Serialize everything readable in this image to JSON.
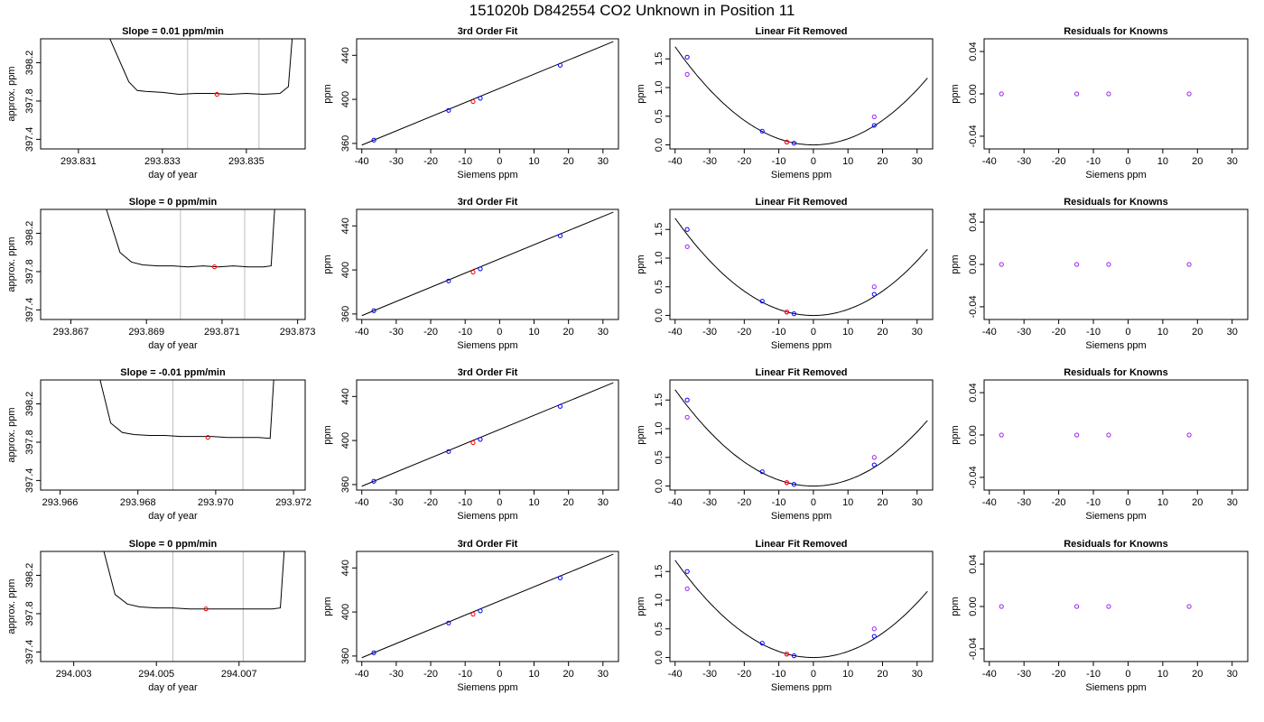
{
  "title": "151020b     D842554   CO2 Unknown in Position  11",
  "colors": {
    "line": "#000000",
    "known": "#0000ff",
    "unknown": "#ff0000",
    "residual": "#a020f0",
    "marker_line": "#bebebe"
  },
  "chart_data": [
    {
      "type": "line",
      "title": "Slope =  0.01  ppm/min",
      "xlabel": "day of year",
      "ylabel": "approx. ppm",
      "xlim": [
        293.8301,
        293.8364
      ],
      "ylim": [
        397.3,
        398.45
      ],
      "xticks": [
        293.831,
        293.833,
        293.835
      ],
      "xtick_labels": [
        "293.831",
        "293.833",
        "293.835"
      ],
      "yticks": [
        397.4,
        397.8,
        398.2
      ],
      "ytick_labels": [
        "397.4",
        "397.8",
        "398.2"
      ],
      "vlines": [
        293.8336,
        293.8353
      ],
      "series": [
        {
          "x": [
            293.8317,
            293.8322,
            293.8324,
            293.8326,
            293.833,
            293.8334,
            293.8338,
            293.8342,
            293.8346,
            293.835,
            293.8354,
            293.8358,
            293.836,
            293.8361
          ],
          "y": [
            398.5,
            398.0,
            397.91,
            397.9,
            397.89,
            397.87,
            397.88,
            397.88,
            397.87,
            397.88,
            397.87,
            397.88,
            397.95,
            398.5
          ]
        }
      ],
      "point": {
        "x": 293.8343,
        "y": 397.87
      }
    },
    {
      "type": "scatter",
      "title": "3rd Order Fit",
      "xlabel": "Siemens ppm",
      "ylabel": "ppm",
      "xlim": [
        -41.5,
        34.5
      ],
      "ylim": [
        355,
        455
      ],
      "xticks": [
        -40,
        -30,
        -20,
        -10,
        0,
        10,
        20,
        30
      ],
      "xtick_labels": [
        "-40",
        "-30",
        "-20",
        "-10",
        "0",
        "10",
        "20",
        "30"
      ],
      "yticks": [
        360,
        400,
        440
      ],
      "ytick_labels": [
        "360",
        "400",
        "440"
      ],
      "fit_line": {
        "x": [
          -40,
          33
        ],
        "y": [
          358.5,
          452.5
        ]
      },
      "knowns": {
        "x": [
          -36.5,
          -14.8,
          -5.6,
          17.6
        ],
        "y": [
          363,
          390,
          401,
          431
        ]
      },
      "unknown": {
        "x": [
          -7.7
        ],
        "y": [
          398
        ]
      }
    },
    {
      "type": "scatter",
      "title": "Linear Fit Removed",
      "xlabel": "Siemens ppm",
      "ylabel": "ppm",
      "xlim": [
        -41.5,
        34.5
      ],
      "ylim": [
        -0.07,
        1.85
      ],
      "xticks": [
        -40,
        -30,
        -20,
        -10,
        0,
        10,
        20,
        30
      ],
      "xtick_labels": [
        "-40",
        "-30",
        "-20",
        "-10",
        "0",
        "10",
        "20",
        "30"
      ],
      "yticks": [
        0.0,
        0.5,
        1.0,
        1.5
      ],
      "ytick_labels": [
        "0.0",
        "0.5",
        "1.0",
        "1.5"
      ],
      "curve_coef": 0.00107,
      "knowns": {
        "x": [
          -36.5,
          -14.8,
          -5.6,
          17.6
        ],
        "y": [
          1.53,
          0.24,
          0.03,
          0.34
        ]
      },
      "unknown": {
        "x": [
          -7.7
        ],
        "y": [
          0.05
        ]
      },
      "residual_points": {
        "x": [
          -36.5,
          17.6,
          -7.7
        ],
        "y": [
          1.23,
          0.49,
          0.05
        ]
      }
    },
    {
      "type": "scatter",
      "title": "Residuals for Knowns",
      "xlabel": "Siemens ppm",
      "ylabel": "ppm",
      "xlim": [
        -41.5,
        34.5
      ],
      "ylim": [
        -0.052,
        0.052
      ],
      "xticks": [
        -40,
        -30,
        -20,
        -10,
        0,
        10,
        20,
        30
      ],
      "xtick_labels": [
        "-40",
        "-30",
        "-20",
        "-10",
        "0",
        "10",
        "20",
        "30"
      ],
      "yticks": [
        -0.04,
        0.0,
        0.04
      ],
      "ytick_labels": [
        "-0.04",
        "0.00",
        "0.04"
      ],
      "residuals": {
        "x": [
          -36.5,
          -14.8,
          -5.6,
          17.6
        ],
        "y": [
          0,
          0,
          0,
          0
        ]
      }
    },
    {
      "type": "line",
      "title": "Slope =  0  ppm/min",
      "xlabel": "day of year",
      "ylabel": "approx. ppm",
      "xlim": [
        293.8662,
        293.8732
      ],
      "ylim": [
        397.3,
        398.45
      ],
      "xticks": [
        293.867,
        293.869,
        293.871,
        293.873
      ],
      "xtick_labels": [
        "293.867",
        "293.869",
        "293.871",
        "293.873"
      ],
      "yticks": [
        397.4,
        397.8,
        398.2
      ],
      "ytick_labels": [
        "397.4",
        "397.8",
        "398.2"
      ],
      "vlines": [
        293.8699,
        293.8716
      ],
      "series": [
        {
          "x": [
            293.8679,
            293.8683,
            293.8686,
            293.8689,
            293.8693,
            293.8697,
            293.8701,
            293.8705,
            293.8709,
            293.8713,
            293.8717,
            293.8721,
            293.8723,
            293.8724
          ],
          "y": [
            398.5,
            398.0,
            397.9,
            397.87,
            397.86,
            397.86,
            397.85,
            397.86,
            397.85,
            397.86,
            397.85,
            397.85,
            397.86,
            398.5
          ]
        }
      ],
      "point": {
        "x": 293.8708,
        "y": 397.85
      }
    },
    {
      "type": "scatter",
      "title": "3rd Order Fit",
      "xlabel": "Siemens ppm",
      "ylabel": "ppm",
      "xlim": [
        -41.5,
        34.5
      ],
      "ylim": [
        355,
        455
      ],
      "xticks": [
        -40,
        -30,
        -20,
        -10,
        0,
        10,
        20,
        30
      ],
      "xtick_labels": [
        "-40",
        "-30",
        "-20",
        "-10",
        "0",
        "10",
        "20",
        "30"
      ],
      "yticks": [
        360,
        400,
        440
      ],
      "ytick_labels": [
        "360",
        "400",
        "440"
      ],
      "fit_line": {
        "x": [
          -40,
          33
        ],
        "y": [
          358.5,
          452.5
        ]
      },
      "knowns": {
        "x": [
          -36.5,
          -14.8,
          -5.6,
          17.6
        ],
        "y": [
          363,
          390,
          401,
          431
        ]
      },
      "unknown": {
        "x": [
          -7.7
        ],
        "y": [
          398
        ]
      }
    },
    {
      "type": "scatter",
      "title": "Linear Fit Removed",
      "xlabel": "Siemens ppm",
      "ylabel": "ppm",
      "xlim": [
        -41.5,
        34.5
      ],
      "ylim": [
        -0.07,
        1.85
      ],
      "xticks": [
        -40,
        -30,
        -20,
        -10,
        0,
        10,
        20,
        30
      ],
      "xtick_labels": [
        "-40",
        "-30",
        "-20",
        "-10",
        "0",
        "10",
        "20",
        "30"
      ],
      "yticks": [
        0.0,
        0.5,
        1.0,
        1.5
      ],
      "ytick_labels": [
        "0.0",
        "0.5",
        "1.0",
        "1.5"
      ],
      "curve_coef": 0.00106,
      "knowns": {
        "x": [
          -36.5,
          -14.8,
          -5.6,
          17.6
        ],
        "y": [
          1.5,
          0.25,
          0.03,
          0.37
        ]
      },
      "unknown": {
        "x": [
          -7.7
        ],
        "y": [
          0.06
        ]
      },
      "residual_points": {
        "x": [
          -36.5,
          17.6,
          -7.7
        ],
        "y": [
          1.2,
          0.5,
          0.06
        ]
      }
    },
    {
      "type": "scatter",
      "title": "Residuals for Knowns",
      "xlabel": "Siemens ppm",
      "ylabel": "ppm",
      "xlim": [
        -41.5,
        34.5
      ],
      "ylim": [
        -0.052,
        0.052
      ],
      "xticks": [
        -40,
        -30,
        -20,
        -10,
        0,
        10,
        20,
        30
      ],
      "xtick_labels": [
        "-40",
        "-30",
        "-20",
        "-10",
        "0",
        "10",
        "20",
        "30"
      ],
      "yticks": [
        -0.04,
        0.0,
        0.04
      ],
      "ytick_labels": [
        "-0.04",
        "0.00",
        "0.04"
      ],
      "residuals": {
        "x": [
          -36.5,
          -14.8,
          -5.6,
          17.6
        ],
        "y": [
          0,
          0,
          0,
          0
        ]
      }
    },
    {
      "type": "line",
      "title": "Slope =  -0.01  ppm/min",
      "xlabel": "day of year",
      "ylabel": "approx. ppm",
      "xlim": [
        293.9655,
        293.9723
      ],
      "ylim": [
        397.3,
        398.45
      ],
      "xticks": [
        293.966,
        293.968,
        293.97,
        293.972
      ],
      "xtick_labels": [
        "293.966",
        "293.968",
        "293.970",
        "293.972"
      ],
      "yticks": [
        397.4,
        397.8,
        398.2
      ],
      "ytick_labels": [
        "397.4",
        "397.8",
        "398.2"
      ],
      "vlines": [
        293.9689,
        293.9707
      ],
      "series": [
        {
          "x": [
            293.967,
            293.9673,
            293.9676,
            293.9679,
            293.9683,
            293.9687,
            293.9691,
            293.9695,
            293.9699,
            293.9703,
            293.9707,
            293.9711,
            293.9714,
            293.9715
          ],
          "y": [
            398.5,
            398.0,
            397.9,
            397.88,
            397.87,
            397.87,
            397.86,
            397.86,
            397.86,
            397.85,
            397.85,
            397.85,
            397.84,
            398.5
          ]
        }
      ],
      "point": {
        "x": 293.9698,
        "y": 397.85
      }
    },
    {
      "type": "scatter",
      "title": "3rd Order Fit",
      "xlabel": "Siemens ppm",
      "ylabel": "ppm",
      "xlim": [
        -41.5,
        34.5
      ],
      "ylim": [
        355,
        455
      ],
      "xticks": [
        -40,
        -30,
        -20,
        -10,
        0,
        10,
        20,
        30
      ],
      "xtick_labels": [
        "-40",
        "-30",
        "-20",
        "-10",
        "0",
        "10",
        "20",
        "30"
      ],
      "yticks": [
        360,
        400,
        440
      ],
      "ytick_labels": [
        "360",
        "400",
        "440"
      ],
      "fit_line": {
        "x": [
          -40,
          33
        ],
        "y": [
          358.5,
          452.5
        ]
      },
      "knowns": {
        "x": [
          -36.5,
          -14.8,
          -5.6,
          17.6
        ],
        "y": [
          363,
          390,
          401,
          431
        ]
      },
      "unknown": {
        "x": [
          -7.7
        ],
        "y": [
          398
        ]
      }
    },
    {
      "type": "scatter",
      "title": "Linear Fit Removed",
      "xlabel": "Siemens ppm",
      "ylabel": "ppm",
      "xlim": [
        -41.5,
        34.5
      ],
      "ylim": [
        -0.07,
        1.85
      ],
      "xticks": [
        -40,
        -30,
        -20,
        -10,
        0,
        10,
        20,
        30
      ],
      "xtick_labels": [
        "-40",
        "-30",
        "-20",
        "-10",
        "0",
        "10",
        "20",
        "30"
      ],
      "yticks": [
        0.0,
        0.5,
        1.0,
        1.5
      ],
      "ytick_labels": [
        "0.0",
        "0.5",
        "1.0",
        "1.5"
      ],
      "curve_coef": 0.00105,
      "knowns": {
        "x": [
          -36.5,
          -14.8,
          -5.6,
          17.6
        ],
        "y": [
          1.5,
          0.25,
          0.03,
          0.37
        ]
      },
      "unknown": {
        "x": [
          -7.7
        ],
        "y": [
          0.06
        ]
      },
      "residual_points": {
        "x": [
          -36.5,
          17.6,
          -7.7
        ],
        "y": [
          1.2,
          0.5,
          0.06
        ]
      }
    },
    {
      "type": "scatter",
      "title": "Residuals for Knowns",
      "xlabel": "Siemens ppm",
      "ylabel": "ppm",
      "xlim": [
        -41.5,
        34.5
      ],
      "ylim": [
        -0.052,
        0.052
      ],
      "xticks": [
        -40,
        -30,
        -20,
        -10,
        0,
        10,
        20,
        30
      ],
      "xtick_labels": [
        "-40",
        "-30",
        "-20",
        "-10",
        "0",
        "10",
        "20",
        "30"
      ],
      "yticks": [
        -0.04,
        0.0,
        0.04
      ],
      "ytick_labels": [
        "-0.04",
        "0.00",
        "0.04"
      ],
      "residuals": {
        "x": [
          -36.5,
          -14.8,
          -5.6,
          17.6
        ],
        "y": [
          0,
          0,
          0,
          0
        ]
      }
    },
    {
      "type": "line",
      "title": "Slope =  0  ppm/min",
      "xlabel": "day of year",
      "ylabel": "approx. ppm",
      "xlim": [
        294.0022,
        294.0086
      ],
      "ylim": [
        397.3,
        398.45
      ],
      "xticks": [
        294.003,
        294.005,
        294.007
      ],
      "xtick_labels": [
        "294.003",
        "294.005",
        "294.007"
      ],
      "yticks": [
        397.4,
        397.8,
        398.2
      ],
      "ytick_labels": [
        "397.4",
        "397.8",
        "398.2"
      ],
      "vlines": [
        294.0054,
        294.0071
      ],
      "series": [
        {
          "x": [
            294.0037,
            294.004,
            294.0043,
            294.0046,
            294.005,
            294.0054,
            294.0058,
            294.0062,
            294.0066,
            294.007,
            294.0074,
            294.0078,
            294.008,
            294.0081
          ],
          "y": [
            398.5,
            398.0,
            397.9,
            397.87,
            397.86,
            397.86,
            397.85,
            397.85,
            397.85,
            397.85,
            397.85,
            397.85,
            397.86,
            398.5
          ]
        }
      ],
      "point": {
        "x": 294.0062,
        "y": 397.85
      }
    },
    {
      "type": "scatter",
      "title": "3rd Order Fit",
      "xlabel": "Siemens ppm",
      "ylabel": "ppm",
      "xlim": [
        -41.5,
        34.5
      ],
      "ylim": [
        355,
        455
      ],
      "xticks": [
        -40,
        -30,
        -20,
        -10,
        0,
        10,
        20,
        30
      ],
      "xtick_labels": [
        "-40",
        "-30",
        "-20",
        "-10",
        "0",
        "10",
        "20",
        "30"
      ],
      "yticks": [
        360,
        400,
        440
      ],
      "ytick_labels": [
        "360",
        "400",
        "440"
      ],
      "fit_line": {
        "x": [
          -40,
          33
        ],
        "y": [
          358.5,
          452.5
        ]
      },
      "knowns": {
        "x": [
          -36.5,
          -14.8,
          -5.6,
          17.6
        ],
        "y": [
          363,
          390,
          401,
          431
        ]
      },
      "unknown": {
        "x": [
          -7.7
        ],
        "y": [
          398
        ]
      }
    },
    {
      "type": "scatter",
      "title": "Linear Fit Removed",
      "xlabel": "Siemens ppm",
      "ylabel": "ppm",
      "xlim": [
        -41.5,
        34.5
      ],
      "ylim": [
        -0.07,
        1.85
      ],
      "xticks": [
        -40,
        -30,
        -20,
        -10,
        0,
        10,
        20,
        30
      ],
      "xtick_labels": [
        "-40",
        "-30",
        "-20",
        "-10",
        "0",
        "10",
        "20",
        "30"
      ],
      "yticks": [
        0.0,
        0.5,
        1.0,
        1.5
      ],
      "ytick_labels": [
        "0.0",
        "0.5",
        "1.0",
        "1.5"
      ],
      "curve_coef": 0.00106,
      "knowns": {
        "x": [
          -36.5,
          -14.8,
          -5.6,
          17.6
        ],
        "y": [
          1.5,
          0.25,
          0.03,
          0.37
        ]
      },
      "unknown": {
        "x": [
          -7.7
        ],
        "y": [
          0.06
        ]
      },
      "residual_points": {
        "x": [
          -36.5,
          17.6,
          -7.7
        ],
        "y": [
          1.2,
          0.5,
          0.06
        ]
      }
    },
    {
      "type": "scatter",
      "title": "Residuals for Knowns",
      "xlabel": "Siemens ppm",
      "ylabel": "ppm",
      "xlim": [
        -41.5,
        34.5
      ],
      "ylim": [
        -0.052,
        0.052
      ],
      "xticks": [
        -40,
        -30,
        -20,
        -10,
        0,
        10,
        20,
        30
      ],
      "xtick_labels": [
        "-40",
        "-30",
        "-20",
        "-10",
        "0",
        "10",
        "20",
        "30"
      ],
      "yticks": [
        -0.04,
        0.0,
        0.04
      ],
      "ytick_labels": [
        "-0.04",
        "0.00",
        "0.04"
      ],
      "residuals": {
        "x": [
          -36.5,
          -14.8,
          -5.6,
          17.6
        ],
        "y": [
          0,
          0,
          0,
          0
        ]
      }
    }
  ]
}
